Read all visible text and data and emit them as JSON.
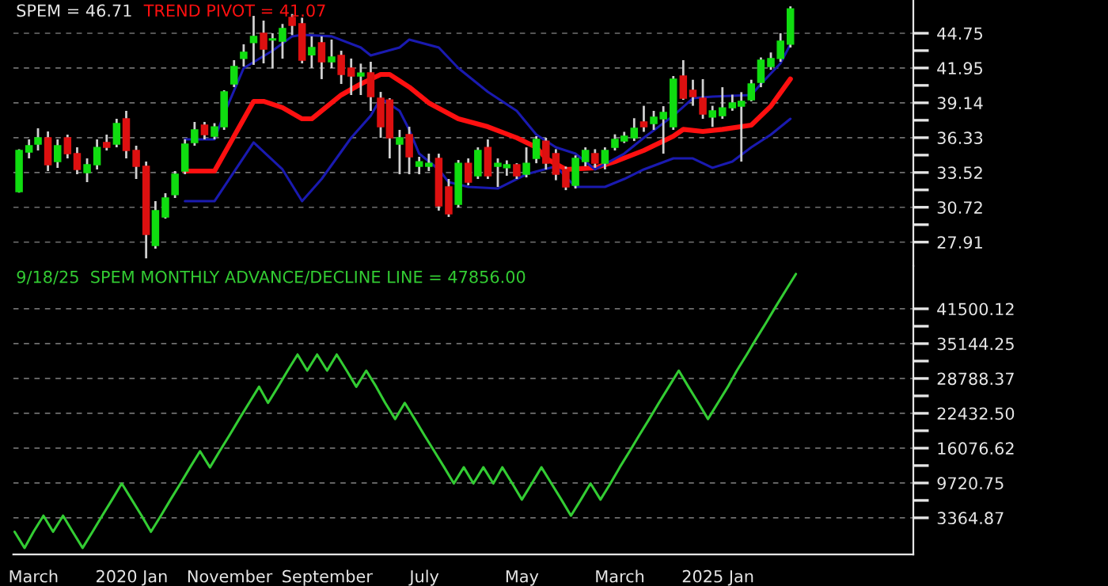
{
  "chart_data": [
    {
      "type": "candlestick",
      "title": "SPEM = 46.71",
      "x": [
        "2019-01-15",
        "2019-02-15",
        "2019-03-15",
        "2019-04-15",
        "2019-05-15",
        "2019-06-15",
        "2019-07-15",
        "2019-08-15",
        "2019-09-15",
        "2019-10-15",
        "2019-11-15",
        "2019-12-15",
        "2020-01-15",
        "2020-02-15",
        "2020-03-15",
        "2020-04-15",
        "2020-05-15",
        "2020-06-15",
        "2020-07-15",
        "2020-08-15",
        "2020-09-15",
        "2020-10-15",
        "2020-11-15",
        "2020-12-15",
        "2021-01-15",
        "2021-02-15",
        "2021-03-15",
        "2021-04-15",
        "2021-05-15",
        "2021-06-15",
        "2021-07-15",
        "2021-08-15",
        "2021-09-15",
        "2021-10-15",
        "2021-11-15",
        "2021-12-15",
        "2022-01-15",
        "2022-02-15",
        "2022-03-15",
        "2022-04-15",
        "2022-05-15",
        "2022-06-15",
        "2022-07-15",
        "2022-08-15",
        "2022-09-15",
        "2022-10-15",
        "2022-11-15",
        "2022-12-15",
        "2023-01-15",
        "2023-02-15",
        "2023-03-15",
        "2023-04-15",
        "2023-05-15",
        "2023-06-15",
        "2023-07-15",
        "2023-08-15",
        "2023-09-15",
        "2023-10-15",
        "2023-11-15",
        "2023-12-15",
        "2024-01-15",
        "2024-02-15",
        "2024-03-15",
        "2024-04-15",
        "2024-05-15",
        "2024-06-15",
        "2024-07-15",
        "2024-08-15",
        "2024-09-15",
        "2024-10-15",
        "2024-11-15",
        "2024-12-15",
        "2025-01-15",
        "2025-02-15",
        "2025-03-15",
        "2025-04-15",
        "2025-05-15",
        "2025-06-15",
        "2025-07-15",
        "2025-08-15"
      ],
      "ohlc": [
        [
          31.98,
          35.4,
          31.9,
          35.3
        ],
        [
          35.17,
          36.2,
          34.66,
          35.68
        ],
        [
          35.81,
          37.09,
          35.3,
          36.32
        ],
        [
          36.32,
          36.83,
          33.64,
          34.15
        ],
        [
          34.4,
          36.19,
          33.89,
          35.68
        ],
        [
          36.32,
          36.58,
          34.66,
          35.04
        ],
        [
          35.04,
          35.55,
          33.38,
          33.77
        ],
        [
          33.51,
          34.66,
          32.74,
          34.15
        ],
        [
          34.15,
          36.19,
          33.77,
          35.55
        ],
        [
          35.94,
          36.58,
          35.3,
          35.55
        ],
        [
          35.81,
          37.85,
          35.55,
          37.47
        ],
        [
          37.85,
          38.49,
          34.66,
          35.3
        ],
        [
          35.3,
          35.68,
          33.0,
          34.02
        ],
        [
          34.02,
          34.4,
          26.6,
          28.53
        ],
        [
          27.64,
          31.22,
          27.38,
          30.45
        ],
        [
          29.94,
          31.85,
          29.81,
          31.47
        ],
        [
          31.73,
          33.64,
          31.47,
          33.38
        ],
        [
          33.64,
          36.19,
          33.38,
          35.81
        ],
        [
          35.94,
          37.6,
          35.68,
          36.96
        ],
        [
          37.34,
          37.6,
          36.19,
          36.58
        ],
        [
          36.45,
          37.5,
          36.2,
          37.2
        ],
        [
          37.21,
          40.15,
          36.96,
          40.02
        ],
        [
          40.66,
          42.58,
          40.41,
          42.07
        ],
        [
          42.71,
          43.86,
          42.07,
          43.22
        ],
        [
          44.0,
          46.15,
          42.2,
          44.5
        ],
        [
          44.75,
          45.77,
          42.32,
          43.47
        ],
        [
          44.2,
          44.75,
          41.9,
          44.3
        ],
        [
          44.11,
          45.5,
          42.7,
          45.13
        ],
        [
          46.03,
          46.3,
          44.6,
          45.39
        ],
        [
          45.52,
          46.0,
          42.32,
          42.58
        ],
        [
          43.0,
          44.5,
          41.95,
          43.6
        ],
        [
          43.98,
          44.5,
          41.05,
          42.45
        ],
        [
          42.45,
          44.24,
          41.94,
          42.83
        ],
        [
          42.96,
          43.34,
          40.66,
          41.43
        ],
        [
          41.94,
          42.71,
          39.77,
          41.3
        ],
        [
          41.3,
          42.3,
          39.77,
          41.55
        ],
        [
          41.56,
          42.45,
          38.49,
          39.64
        ],
        [
          39.51,
          40.02,
          36.32,
          37.21
        ],
        [
          39.38,
          39.51,
          34.66,
          36.32
        ],
        [
          35.81,
          36.96,
          33.38,
          36.32
        ],
        [
          36.58,
          37.21,
          33.38,
          34.79
        ],
        [
          34.02,
          34.79,
          33.38,
          34.4
        ],
        [
          34.02,
          35.04,
          33.64,
          34.27
        ],
        [
          34.66,
          35.04,
          30.45,
          30.83
        ],
        [
          32.36,
          33.0,
          29.94,
          30.19
        ],
        [
          30.96,
          34.53,
          30.7,
          34.27
        ],
        [
          34.27,
          34.66,
          32.49,
          32.74
        ],
        [
          33.26,
          35.55,
          33.0,
          35.3
        ],
        [
          35.55,
          36.19,
          33.0,
          33.26
        ],
        [
          34.02,
          34.66,
          32.36,
          34.27
        ],
        [
          33.9,
          34.5,
          33.26,
          34.15
        ],
        [
          34.15,
          34.27,
          33.0,
          33.26
        ],
        [
          33.38,
          35.55,
          33.13,
          34.27
        ],
        [
          34.66,
          36.45,
          34.27,
          36.19
        ],
        [
          36.06,
          36.32,
          33.77,
          34.27
        ],
        [
          35.04,
          35.4,
          32.9,
          33.38
        ],
        [
          33.77,
          34.0,
          32.1,
          32.36
        ],
        [
          32.49,
          34.9,
          32.23,
          34.66
        ],
        [
          34.4,
          35.55,
          34.02,
          35.3
        ],
        [
          35.04,
          35.4,
          33.9,
          34.27
        ],
        [
          34.27,
          35.55,
          33.77,
          35.3
        ],
        [
          35.55,
          36.6,
          35.3,
          36.19
        ],
        [
          36.06,
          36.8,
          35.9,
          36.45
        ],
        [
          36.32,
          37.9,
          36.06,
          37.09
        ],
        [
          37.6,
          38.9,
          36.8,
          37.21
        ],
        [
          37.47,
          38.49,
          36.96,
          37.98
        ],
        [
          37.85,
          38.87,
          35.04,
          38.36
        ],
        [
          37.21,
          41.3,
          36.96,
          41.05
        ],
        [
          41.3,
          42.58,
          39.38,
          39.51
        ],
        [
          40.15,
          41.0,
          38.9,
          39.64
        ],
        [
          39.51,
          41.05,
          37.85,
          38.23
        ],
        [
          38.0,
          38.9,
          37.2,
          38.49
        ],
        [
          38.1,
          40.4,
          37.85,
          38.74
        ],
        [
          38.74,
          39.8,
          38.5,
          39.13
        ],
        [
          38.87,
          40.0,
          34.4,
          39.26
        ],
        [
          39.38,
          41.0,
          39.26,
          40.66
        ],
        [
          40.79,
          42.8,
          40.4,
          42.58
        ],
        [
          42.07,
          43.2,
          41.8,
          42.71
        ],
        [
          42.71,
          44.75,
          42.45,
          44.11
        ],
        [
          43.86,
          46.92,
          43.6,
          46.71
        ]
      ],
      "series": [
        {
          "type": "line",
          "name": "TREND PIVOT = 41.07",
          "color": "#ff1010",
          "x": [
            "2020-06-15",
            "2020-09-15",
            "2021-01-15",
            "2021-02-15",
            "2021-04-15",
            "2021-06-15",
            "2021-07-15",
            "2021-10-15",
            "2021-12-15",
            "2022-02-15",
            "2022-03-15",
            "2022-05-15",
            "2022-07-15",
            "2022-10-15",
            "2023-01-15",
            "2023-04-15",
            "2023-06-15",
            "2023-07-15",
            "2023-09-15",
            "2023-12-15",
            "2024-02-15",
            "2024-05-15",
            "2024-08-15",
            "2024-09-15",
            "2024-11-15",
            "2025-01-15",
            "2025-04-15",
            "2025-06-15",
            "2025-08-15"
          ],
          "values": [
            33.64,
            33.64,
            39.26,
            39.26,
            38.75,
            37.85,
            37.85,
            39.77,
            40.66,
            41.43,
            41.43,
            40.41,
            39.13,
            37.85,
            37.21,
            36.32,
            35.55,
            34.66,
            33.77,
            33.9,
            34.4,
            35.3,
            36.45,
            37.0,
            36.83,
            37.0,
            37.34,
            38.87,
            41.07
          ]
        },
        {
          "type": "line",
          "color": "#1a1ab0",
          "x": [
            "2020-06-15",
            "2020-09-15",
            "2020-10-15",
            "2020-12-15",
            "2021-03-15",
            "2021-05-15",
            "2021-06-15",
            "2021-09-15",
            "2021-12-15",
            "2022-01-15",
            "2022-04-15",
            "2022-05-15",
            "2022-08-15",
            "2022-10-15",
            "2023-01-15",
            "2023-04-15",
            "2023-06-15",
            "2023-08-15",
            "2023-10-15",
            "2023-12-15",
            "2024-03-15",
            "2024-05-15",
            "2024-08-15",
            "2024-10-15",
            "2024-12-15",
            "2025-04-15",
            "2025-05-15",
            "2025-07-15",
            "2025-08-15"
          ],
          "values": [
            36.19,
            36.19,
            38.24,
            41.94,
            43.34,
            44.5,
            44.62,
            44.5,
            43.6,
            42.96,
            43.6,
            44.24,
            43.6,
            41.94,
            40.02,
            38.49,
            36.58,
            35.55,
            35.04,
            33.77,
            35.04,
            36.32,
            38.1,
            39.51,
            39.64,
            39.77,
            40.66,
            42.32,
            43.86
          ]
        },
        {
          "type": "line",
          "color": "#1a1ab0",
          "x": [
            "2020-06-15",
            "2020-09-15",
            "2021-01-15",
            "2021-04-15",
            "2021-06-15",
            "2021-08-15",
            "2021-11-15",
            "2022-01-15",
            "2022-02-15",
            "2022-04-15",
            "2022-05-15",
            "2022-06-15",
            "2022-08-15",
            "2022-09-15",
            "2022-11-15",
            "2023-02-15",
            "2023-05-15",
            "2023-08-15",
            "2023-10-15",
            "2024-01-15",
            "2024-03-15",
            "2024-05-15",
            "2024-08-15",
            "2024-10-15",
            "2024-12-15",
            "2025-02-15",
            "2025-04-15",
            "2025-06-15",
            "2025-08-15"
          ],
          "values": [
            31.21,
            31.21,
            35.94,
            33.77,
            31.21,
            33.0,
            36.32,
            38.1,
            39.51,
            38.49,
            36.96,
            35.04,
            33.77,
            32.74,
            32.36,
            32.23,
            33.38,
            34.02,
            32.36,
            32.36,
            33.0,
            33.77,
            34.66,
            34.66,
            33.9,
            34.4,
            35.55,
            36.58,
            37.85
          ]
        }
      ],
      "xlim": [
        "2018-12-28",
        "2026-09-02"
      ],
      "ylim": [
        25.98,
        47.43
      ],
      "yticks": [
        44.75,
        {
          "value": 43.35,
          "label": null
        },
        41.95,
        {
          "value": 40.545,
          "label": null
        },
        39.14,
        {
          "value": 37.735,
          "label": null
        },
        36.33,
        {
          "value": 34.925,
          "label": null
        },
        33.52,
        {
          "value": 32.12,
          "label": null
        },
        30.72,
        {
          "value": 29.315,
          "label": null
        },
        27.91
      ],
      "grid": "y",
      "tick_labels": "y"
    },
    {
      "type": "line",
      "title": "9/18/25  SPEM MONTHLY ADVANCE/DECLINE LINE = 47856.00",
      "series": [
        {
          "color": "#33cc33",
          "x": [
            "2019-01-01",
            "2019-02-01",
            "2019-03-01",
            "2019-04-01",
            "2019-05-01",
            "2019-06-01",
            "2019-07-01",
            "2019-08-01",
            "2019-09-01",
            "2019-10-01",
            "2019-11-01",
            "2019-12-01",
            "2020-01-01",
            "2020-02-01",
            "2020-03-01",
            "2020-04-01",
            "2020-05-01",
            "2020-06-01",
            "2020-07-01",
            "2020-08-01",
            "2020-09-01",
            "2020-10-01",
            "2020-11-01",
            "2020-12-01",
            "2021-01-01",
            "2021-02-01",
            "2021-03-01",
            "2021-04-01",
            "2021-05-01",
            "2021-06-01",
            "2021-07-01",
            "2021-08-01",
            "2021-09-01",
            "2021-10-01",
            "2021-11-01",
            "2021-12-01",
            "2022-01-01",
            "2022-02-01",
            "2022-03-01",
            "2022-04-01",
            "2022-05-01",
            "2022-06-01",
            "2022-07-01",
            "2022-08-01",
            "2022-09-01",
            "2022-10-01",
            "2022-11-01",
            "2022-12-01",
            "2023-01-01",
            "2023-02-01",
            "2023-03-01",
            "2023-04-01",
            "2023-05-01",
            "2023-06-01",
            "2023-07-01",
            "2023-08-01",
            "2023-09-01",
            "2023-10-01",
            "2023-11-01",
            "2023-12-01",
            "2024-01-01",
            "2024-02-01",
            "2024-03-01",
            "2024-04-01",
            "2024-05-01",
            "2024-06-01",
            "2024-07-01",
            "2024-08-01",
            "2024-09-01",
            "2024-10-01",
            "2024-11-01",
            "2024-12-01",
            "2025-01-01",
            "2025-02-01",
            "2025-03-01",
            "2025-04-01",
            "2025-05-01",
            "2025-06-01",
            "2025-07-01",
            "2025-08-01",
            "2025-09-01"
          ],
          "values": [
            816,
            -2124,
            816,
            3756,
            816,
            3756,
            816,
            -2124,
            816,
            3756,
            6696,
            9636,
            6696,
            3756,
            816,
            3756,
            6696,
            9636,
            12576,
            15516,
            12576,
            15516,
            18456,
            21396,
            24336,
            27276,
            24336,
            27276,
            30216,
            33156,
            30216,
            33156,
            30216,
            33156,
            30216,
            27276,
            30216,
            27276,
            24336,
            21396,
            24336,
            21396,
            18456,
            15516,
            12576,
            9636,
            12576,
            9636,
            12576,
            9636,
            12576,
            9636,
            6696,
            9636,
            12576,
            9636,
            6696,
            3756,
            6696,
            9636,
            6696,
            9636,
            12576,
            15516,
            18456,
            21396,
            24336,
            27276,
            30216,
            27276,
            24336,
            21396,
            24336,
            27276,
            30216,
            33156,
            36096,
            39036,
            41976,
            44916,
            47856
          ]
        }
      ],
      "xlim": [
        "2018-12-28",
        "2026-09-02"
      ],
      "xticks": [
        {
          "value": "2019-03-01",
          "label": "March"
        },
        {
          "value": "2020-01-01",
          "label": "2020 Jan"
        },
        {
          "value": "2020-11-01",
          "label": "November"
        },
        {
          "value": "2021-09-01",
          "label": "September"
        },
        {
          "value": "2022-07-01",
          "label": "July"
        },
        {
          "value": "2023-05-01",
          "label": "May"
        },
        {
          "value": "2024-03-01",
          "label": "March"
        },
        {
          "value": "2025-01-01",
          "label": "2025 Jan"
        }
      ],
      "ylim": [
        -3300,
        49300
      ],
      "yticks": [
        41500.12,
        {
          "value": 38322.19,
          "label": null
        },
        35144.25,
        {
          "value": 31966.31,
          "label": null
        },
        28788.37,
        {
          "value": 25610.44,
          "label": null
        },
        {
          "value": 22432.5,
          "label": "22432.50"
        },
        {
          "value": 19254.56,
          "label": null
        },
        16076.62,
        {
          "value": 12898.69,
          "label": null
        },
        9720.75,
        {
          "value": 6542.81,
          "label": null
        },
        3364.87
      ],
      "grid": "y"
    }
  ]
}
